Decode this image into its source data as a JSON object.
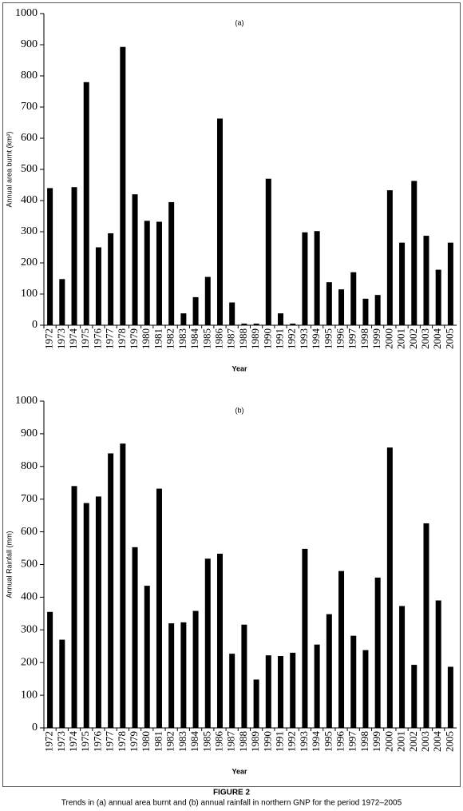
{
  "chart_data": [
    {
      "type": "bar",
      "annotation": "(a)",
      "x_label": "Year",
      "y_label": "Annual area burnt (km²)",
      "categories": [
        "1972",
        "1973",
        "1974",
        "1975",
        "1976",
        "1977",
        "1978",
        "1979",
        "1980",
        "1981",
        "1982",
        "1983",
        "1984",
        "1985",
        "1986",
        "1987",
        "1988",
        "1989",
        "1990",
        "1991",
        "1992",
        "1993",
        "1994",
        "1995",
        "1996",
        "1997",
        "1998",
        "1999",
        "2000",
        "2001",
        "2002",
        "2003",
        "2004",
        "2005"
      ],
      "values": [
        440,
        148,
        443,
        780,
        250,
        295,
        893,
        420,
        335,
        332,
        395,
        38,
        90,
        155,
        663,
        73,
        5,
        5,
        470,
        38,
        5,
        298,
        302,
        138,
        115,
        170,
        85,
        97,
        433,
        265,
        463,
        287,
        178,
        265
      ],
      "color": "#000000",
      "ylim": [
        0,
        1000
      ],
      "yticks": [
        0,
        100,
        200,
        300,
        400,
        500,
        600,
        700,
        800,
        900,
        1000
      ],
      "grid": false
    },
    {
      "type": "bar",
      "annotation": "(b)",
      "x_label": "Year",
      "y_label": "Annual Rainfall (mm)",
      "categories": [
        "1972",
        "1973",
        "1974",
        "1975",
        "1976",
        "1977",
        "1978",
        "1979",
        "1980",
        "1981",
        "1982",
        "1983",
        "1984",
        "1985",
        "1986",
        "1987",
        "1988",
        "1989",
        "1990",
        "1991",
        "1992",
        "1993",
        "1994",
        "1995",
        "1996",
        "1997",
        "1998",
        "1999",
        "2000",
        "2001",
        "2002",
        "2003",
        "2004",
        "2005"
      ],
      "values": [
        355,
        270,
        740,
        688,
        708,
        840,
        870,
        553,
        435,
        732,
        320,
        323,
        358,
        518,
        533,
        227,
        316,
        148,
        222,
        220,
        230,
        548,
        255,
        348,
        480,
        282,
        238,
        460,
        858,
        373,
        193,
        626,
        390,
        187
      ],
      "color": "#000000",
      "ylim": [
        0,
        1000
      ],
      "yticks": [
        0,
        100,
        200,
        300,
        400,
        500,
        600,
        700,
        800,
        900,
        1000
      ],
      "grid": false
    }
  ],
  "figure": {
    "label": "FIGURE 2",
    "caption": "Trends in (a) annual area burnt and (b) annual rainfall in northern GNP for the period 1972–2005"
  }
}
